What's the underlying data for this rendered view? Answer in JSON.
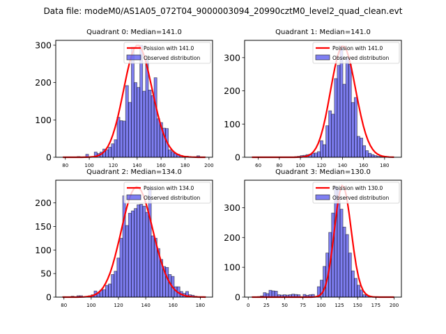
{
  "figure": {
    "suptitle": "Data file: modeM0/AS1A05_072T04_9000003094_20990cztM0_level2_quad_clean.evt"
  },
  "chart_data": [
    {
      "type": "bar",
      "title": "Quadrant 0: Median=141.0",
      "xlim": [
        72,
        203
      ],
      "ylim": [
        0,
        313
      ],
      "xticks": [
        80,
        100,
        120,
        140,
        160,
        180,
        200
      ],
      "yticks": [
        0,
        100,
        200,
        300
      ],
      "legend_position": "top-right",
      "bin_start": 78,
      "bin_width": 2.38,
      "counts": [
        1,
        0,
        0,
        1,
        1,
        2,
        1,
        0,
        8,
        0,
        0,
        14,
        10,
        14,
        22,
        20,
        27,
        36,
        47,
        107,
        98,
        97,
        192,
        147,
        295,
        200,
        187,
        300,
        177,
        262,
        180,
        165,
        213,
        103,
        93,
        78,
        77,
        20,
        15,
        10,
        8,
        5,
        3,
        3,
        2,
        1,
        0,
        4,
        1,
        1
      ],
      "poisson": {
        "label": "Poission with 141.0",
        "lambda": 141.0,
        "peak": 300
      },
      "observed_label": "Observed distribution"
    },
    {
      "type": "bar",
      "title": "Quadrant 1: Median=141.0",
      "xlim": [
        47,
        196
      ],
      "ylim": [
        0,
        352
      ],
      "xticks": [
        60,
        80,
        100,
        120,
        140,
        160,
        180
      ],
      "yticks": [
        0,
        100,
        200,
        300
      ],
      "legend_position": "top-right",
      "bin_start": 54,
      "bin_width": 2.7,
      "counts": [
        1,
        0,
        0,
        0,
        0,
        0,
        0,
        0,
        0,
        0,
        0,
        0,
        0,
        1,
        1,
        2,
        3,
        5,
        6,
        8,
        9,
        12,
        13,
        17,
        50,
        38,
        95,
        140,
        130,
        237,
        277,
        335,
        220,
        300,
        280,
        165,
        180,
        63,
        58,
        35,
        20,
        12,
        8,
        5,
        3,
        2,
        1,
        0,
        0,
        0
      ],
      "poisson": {
        "label": "Poission with 141.0",
        "lambda": 141.0,
        "peak": 335
      },
      "observed_label": "Observed distribution"
    },
    {
      "type": "bar",
      "title": "Quadrant 2: Median=134.0",
      "xlim": [
        74,
        189
      ],
      "ylim": [
        0,
        248
      ],
      "xticks": [
        80,
        100,
        120,
        140,
        160,
        180
      ],
      "yticks": [
        0,
        50,
        100,
        150,
        200
      ],
      "legend_position": "top-right",
      "bin_start": 79,
      "bin_width": 2.1,
      "counts": [
        1,
        0,
        0,
        2,
        0,
        3,
        3,
        1,
        0,
        3,
        5,
        13,
        8,
        15,
        16,
        25,
        28,
        48,
        55,
        83,
        125,
        215,
        152,
        178,
        183,
        188,
        196,
        197,
        193,
        180,
        232,
        130,
        125,
        103,
        80,
        65,
        63,
        48,
        44,
        22,
        22,
        12,
        8,
        12,
        5,
        4,
        2,
        1,
        1,
        1
      ],
      "poisson": {
        "label": "Poission with 134.0",
        "lambda": 134.0,
        "peak": 234
      },
      "observed_label": "Observed distribution"
    },
    {
      "type": "bar",
      "title": "Quadrant 3: Median=130.0",
      "xlim": [
        -5,
        210
      ],
      "ylim": [
        0,
        392
      ],
      "xticks": [
        0,
        25,
        50,
        75,
        100,
        125,
        150,
        175,
        200
      ],
      "yticks": [
        0,
        100,
        200,
        300
      ],
      "legend_position": "top-right",
      "bin_start": 5,
      "bin_width": 3.9,
      "counts": [
        1,
        1,
        2,
        4,
        15,
        12,
        23,
        21,
        20,
        8,
        7,
        8,
        7,
        8,
        10,
        9,
        8,
        0,
        9,
        6,
        8,
        9,
        2,
        35,
        57,
        103,
        148,
        217,
        282,
        372,
        362,
        295,
        235,
        210,
        148,
        88,
        63,
        40,
        24,
        8,
        6,
        2,
        1,
        1,
        0,
        1,
        0,
        1,
        0,
        1
      ],
      "poisson": {
        "label": "Poission with 130.0",
        "lambda": 130.0,
        "peak": 375
      },
      "observed_label": "Observed distribution"
    }
  ]
}
